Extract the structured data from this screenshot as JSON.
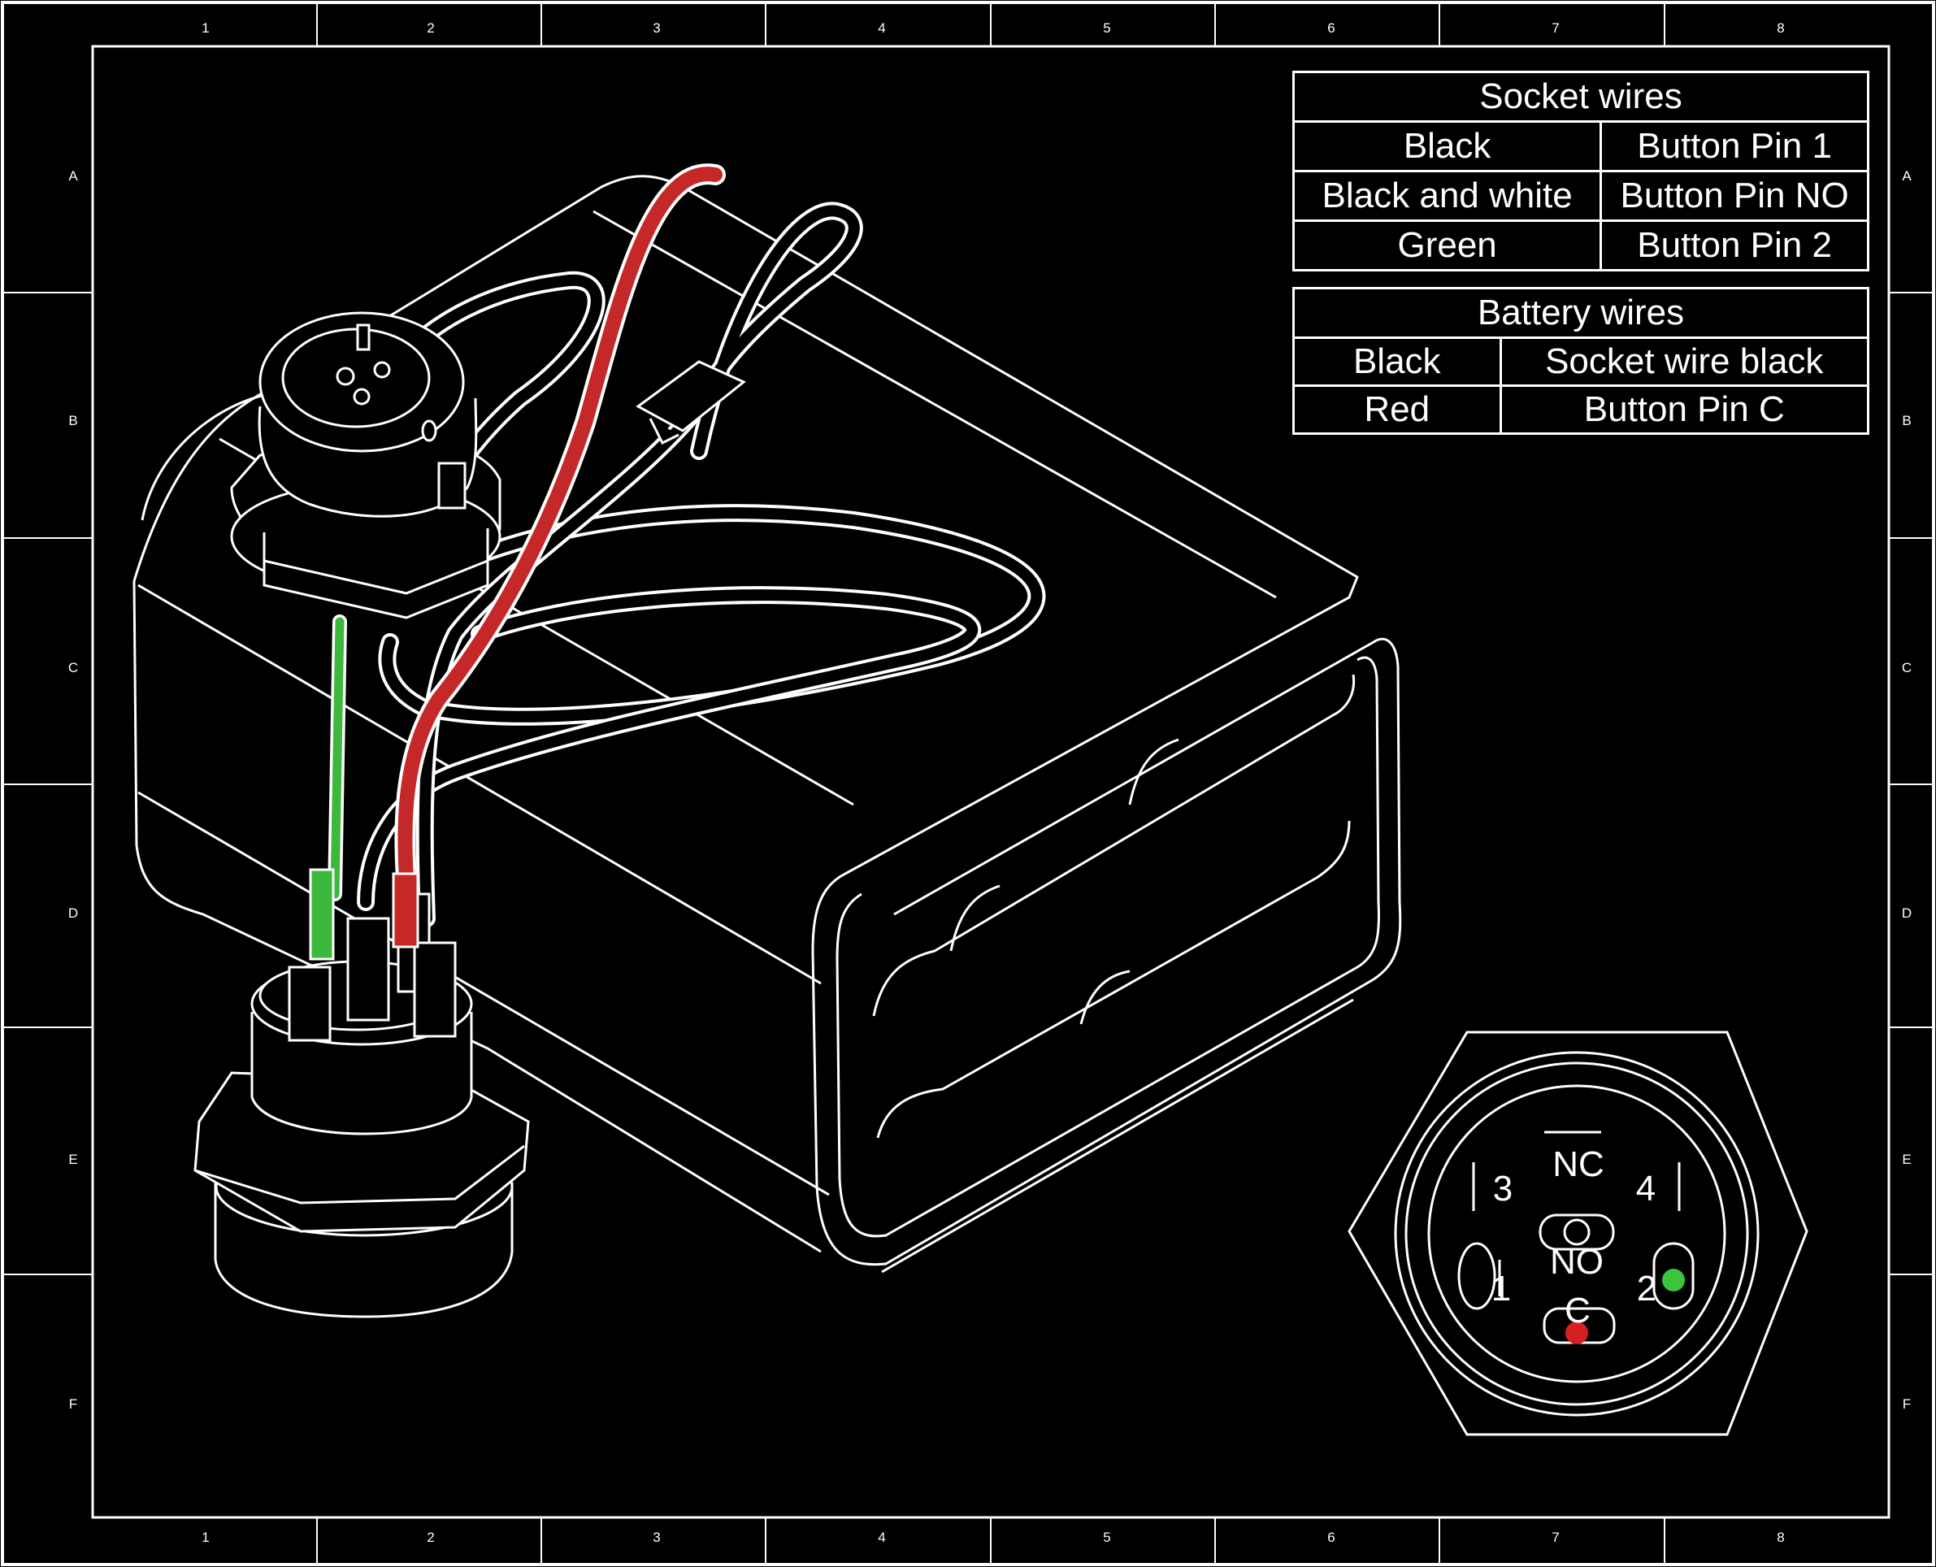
{
  "grid": {
    "columns": [
      "1",
      "2",
      "3",
      "4",
      "5",
      "6",
      "7",
      "8"
    ],
    "rows": [
      "A",
      "B",
      "C",
      "D",
      "E",
      "F"
    ]
  },
  "socket_table": {
    "title": "Socket wires",
    "rows": [
      [
        "Black",
        "Button Pin 1"
      ],
      [
        "Black and white",
        "Button Pin NO"
      ],
      [
        "Green",
        "Button Pin 2"
      ]
    ]
  },
  "battery_table": {
    "title": "Battery wires",
    "rows": [
      [
        "Black",
        "Socket wire black"
      ],
      [
        "Red",
        "Button Pin C"
      ]
    ]
  },
  "button_detail": {
    "pin_labels": {
      "nc": "NC",
      "pin_3": "3",
      "pin_4": "4",
      "no": "NO",
      "pin_1": "1",
      "pin_2": "2",
      "c": "C"
    },
    "pin_2_color": "#3cc43c",
    "pin_c_color": "#d42020"
  },
  "colors": {
    "background": "#000000",
    "line": "#ffffff",
    "green_wire": "#3cb83c",
    "red_wire": "#c42828"
  }
}
